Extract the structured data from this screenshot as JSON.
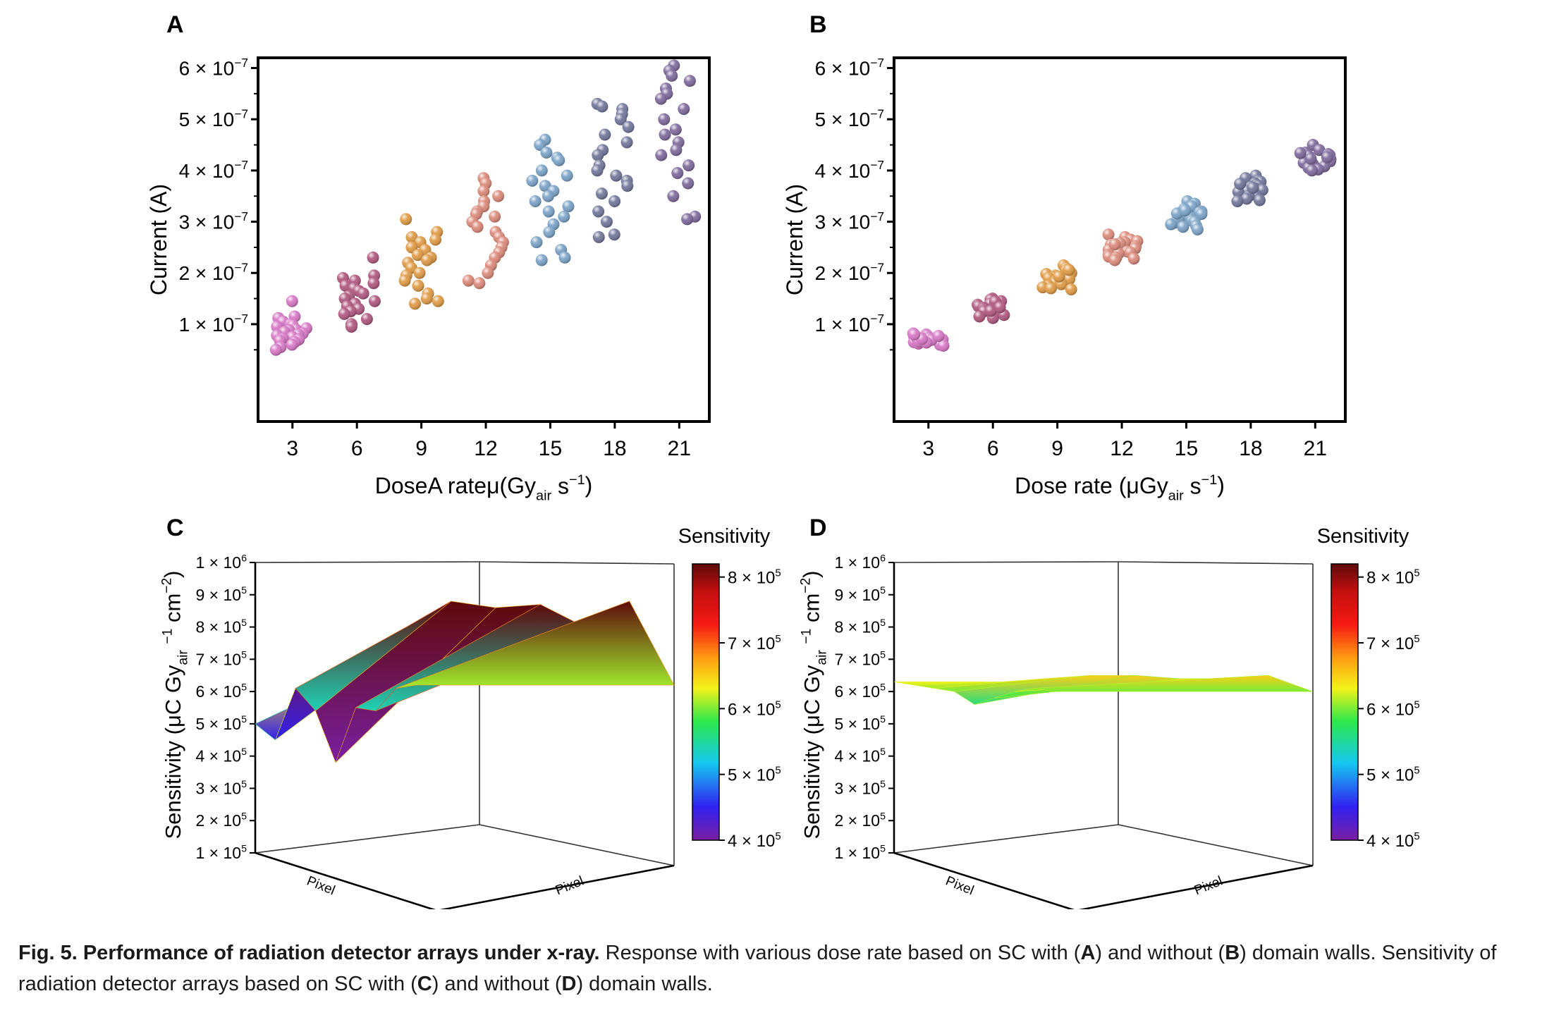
{
  "chart_data": [
    {
      "panel": "A",
      "type": "scatter",
      "xlabel": "DoseA rateμ(Gy",
      "xlabel_sub": "air",
      "xlabel_tail": " s",
      "xlabel_sup": "−1",
      "xlabel_end": ")",
      "ylabel": "Current (A)",
      "x_ticks": [
        "3",
        "6",
        "9",
        "12",
        "15",
        "18",
        "21"
      ],
      "y_ticks": [
        "1 × 10",
        "2 × 10",
        "3 × 10",
        "4 × 10",
        "5 × 10",
        "6 × 10"
      ],
      "y_tick_exp": "−7",
      "xlim": [
        1.4,
        22.4
      ],
      "ylim": [
        -9e-08,
        6.2e-07
      ],
      "series": [
        {
          "x": 3,
          "color": "#d778c6",
          "values": [
            1.45e-07,
            1.15e-07,
            1.12e-07,
            1.05e-07,
            1e-07,
            9.8e-08,
            9.5e-08,
            9.2e-08,
            9e-08,
            8.8e-08,
            8.5e-08,
            8.2e-08,
            8e-08,
            7.8e-08,
            7.5e-08,
            7.2e-08,
            7e-08,
            6.8e-08,
            6.5e-08,
            6e-08,
            5.5e-08,
            5e-08
          ]
        },
        {
          "x": 6,
          "color": "#b0587f",
          "values": [
            2.3e-07,
            1.95e-07,
            1.9e-07,
            1.85e-07,
            1.8e-07,
            1.75e-07,
            1.7e-07,
            1.65e-07,
            1.6e-07,
            1.55e-07,
            1.5e-07,
            1.45e-07,
            1.4e-07,
            1.35e-07,
            1.3e-07,
            1.25e-07,
            1.2e-07,
            1.1e-07,
            1e-07,
            9.5e-08
          ]
        },
        {
          "x": 9,
          "color": "#e09a45",
          "values": [
            3.05e-07,
            2.8e-07,
            2.7e-07,
            2.65e-07,
            2.6e-07,
            2.5e-07,
            2.45e-07,
            2.35e-07,
            2.3e-07,
            2.25e-07,
            2.2e-07,
            2.1e-07,
            2e-07,
            1.95e-07,
            1.85e-07,
            1.75e-07,
            1.6e-07,
            1.5e-07,
            1.45e-07,
            1.4e-07
          ]
        },
        {
          "x": 12,
          "color": "#db8a7a",
          "values": [
            3.85e-07,
            3.75e-07,
            3.6e-07,
            3.5e-07,
            3.4e-07,
            3.3e-07,
            3.2e-07,
            3.15e-07,
            3.1e-07,
            3e-07,
            2.9e-07,
            2.8e-07,
            2.7e-07,
            2.6e-07,
            2.5e-07,
            2.4e-07,
            2.3e-07,
            2.15e-07,
            2e-07,
            1.85e-07,
            1.8e-07
          ]
        },
        {
          "x": 15,
          "color": "#7ba3c8",
          "values": [
            4.6e-07,
            4.5e-07,
            4.35e-07,
            4.25e-07,
            4.2e-07,
            4e-07,
            3.9e-07,
            3.8e-07,
            3.7e-07,
            3.6e-07,
            3.5e-07,
            3.4e-07,
            3.3e-07,
            3.2e-07,
            3.1e-07,
            2.95e-07,
            2.8e-07,
            2.6e-07,
            2.45e-07,
            2.3e-07,
            2.25e-07
          ]
        },
        {
          "x": 18,
          "color": "#72779b",
          "values": [
            5.3e-07,
            5.25e-07,
            5.2e-07,
            5.1e-07,
            5e-07,
            4.85e-07,
            4.7e-07,
            4.55e-07,
            4.4e-07,
            4.3e-07,
            4.1e-07,
            4e-07,
            3.9e-07,
            3.8e-07,
            3.7e-07,
            3.55e-07,
            3.4e-07,
            3.2e-07,
            3e-07,
            2.75e-07,
            2.7e-07
          ]
        },
        {
          "x": 21,
          "color": "#7e6a9c",
          "values": [
            6.05e-07,
            5.95e-07,
            5.85e-07,
            5.75e-07,
            5.6e-07,
            5.5e-07,
            5.4e-07,
            5.2e-07,
            5e-07,
            4.8e-07,
            4.7e-07,
            4.55e-07,
            4.4e-07,
            4.3e-07,
            4.1e-07,
            3.95e-07,
            3.75e-07,
            3.5e-07,
            3.1e-07,
            3.05e-07
          ]
        }
      ]
    },
    {
      "panel": "B",
      "type": "scatter",
      "xlabel": "Dose rate (μGy",
      "xlabel_sub": "air",
      "xlabel_tail": " s",
      "xlabel_sup": "−1",
      "xlabel_end": ")",
      "ylabel": "Current (A)",
      "x_ticks": [
        "3",
        "6",
        "9",
        "12",
        "15",
        "18",
        "21"
      ],
      "y_ticks": [
        "1 × 10",
        "2 × 10",
        "3 × 10",
        "4 × 10",
        "5 × 10",
        "6 × 10"
      ],
      "y_tick_exp": "−7",
      "xlim": [
        1.4,
        22.4
      ],
      "ylim": [
        -9e-08,
        6.2e-07
      ],
      "series": [
        {
          "x": 3,
          "color": "#d778c6",
          "values": [
            8.2e-08,
            8e-08,
            7.8e-08,
            7.6e-08,
            7.4e-08,
            7.2e-08,
            7e-08,
            6.8e-08,
            6.5e-08,
            6.2e-08,
            6e-08,
            5.8e-08,
            7.5e-08,
            7.3e-08,
            6.9e-08,
            6.6e-08,
            6.4e-08,
            7.1e-08,
            7.7e-08,
            8e-08
          ]
        },
        {
          "x": 6,
          "color": "#b0587f",
          "values": [
            1.5e-07,
            1.48e-07,
            1.45e-07,
            1.42e-07,
            1.4e-07,
            1.38e-07,
            1.35e-07,
            1.32e-07,
            1.3e-07,
            1.28e-07,
            1.25e-07,
            1.22e-07,
            1.2e-07,
            1.18e-07,
            1.15e-07,
            1.12e-07,
            1.36e-07,
            1.44e-07,
            1.26e-07,
            1.33e-07
          ]
        },
        {
          "x": 9,
          "color": "#e09a45",
          "values": [
            2.15e-07,
            2.1e-07,
            2.05e-07,
            2.02e-07,
            2e-07,
            1.98e-07,
            1.95e-07,
            1.92e-07,
            1.9e-07,
            1.88e-07,
            1.85e-07,
            1.82e-07,
            1.8e-07,
            1.78e-07,
            1.75e-07,
            1.72e-07,
            1.7e-07,
            1.68e-07,
            1.93e-07,
            2.06e-07
          ]
        },
        {
          "x": 12,
          "color": "#db8a7a",
          "values": [
            2.75e-07,
            2.7e-07,
            2.65e-07,
            2.62e-07,
            2.6e-07,
            2.58e-07,
            2.55e-07,
            2.52e-07,
            2.5e-07,
            2.48e-07,
            2.45e-07,
            2.42e-07,
            2.4e-07,
            2.38e-07,
            2.35e-07,
            2.32e-07,
            2.3e-07,
            2.28e-07,
            2.25e-07,
            2.56e-07
          ]
        },
        {
          "x": 15,
          "color": "#7ba3c8",
          "values": [
            3.4e-07,
            3.35e-07,
            3.3e-07,
            3.25e-07,
            3.2e-07,
            3.18e-07,
            3.15e-07,
            3.12e-07,
            3.1e-07,
            3.08e-07,
            3.05e-07,
            3.02e-07,
            3e-07,
            2.98e-07,
            2.95e-07,
            2.92e-07,
            2.9e-07,
            2.85e-07,
            3.16e-07,
            3.22e-07
          ]
        },
        {
          "x": 18,
          "color": "#72779b",
          "values": [
            3.9e-07,
            3.85e-07,
            3.8e-07,
            3.78e-07,
            3.75e-07,
            3.72e-07,
            3.7e-07,
            3.68e-07,
            3.65e-07,
            3.62e-07,
            3.6e-07,
            3.58e-07,
            3.55e-07,
            3.52e-07,
            3.5e-07,
            3.45e-07,
            3.42e-07,
            3.4e-07,
            3.66e-07,
            3.74e-07
          ]
        },
        {
          "x": 21,
          "color": "#7e6a9c",
          "values": [
            4.5e-07,
            4.4e-07,
            4.35e-07,
            4.32e-07,
            4.3e-07,
            4.28e-07,
            4.25e-07,
            4.22e-07,
            4.2e-07,
            4.18e-07,
            4.15e-07,
            4.12e-07,
            4.1e-07,
            4.08e-07,
            4.05e-07,
            4.02e-07,
            4e-07,
            4.26e-07,
            4.34e-07,
            4.23e-07
          ]
        }
      ]
    },
    {
      "panel": "C",
      "type": "surface",
      "zlabel": "Sensitivity (μC Gy",
      "zlabel_sub": "air",
      "zlabel_sup1": "−1",
      "zlabel_mid": " cm",
      "zlabel_sup2": "−2",
      "zlabel_end": ")",
      "xlabel": "Pixel",
      "ylabel": "Pixel",
      "z_ticks": [
        "1 × 10",
        "2 × 10",
        "3 × 10",
        "4 × 10",
        "5 × 10",
        "6 × 10",
        "7 × 10",
        "8 × 10",
        "9 × 10",
        "1 × 10"
      ],
      "z_tick_exps": [
        "5",
        "5",
        "5",
        "5",
        "5",
        "5",
        "5",
        "5",
        "5",
        "6"
      ],
      "colorbar_title": "Sensitivity",
      "colorbar_ticks": [
        "4 × 10",
        "5 × 10",
        "6 × 10",
        "7 × 10",
        "8 × 10"
      ],
      "colorbar_tick_exp": "5",
      "zlim": [
        100000,
        1000000
      ],
      "colorbar_range": [
        400000,
        820000
      ],
      "surface_rows": [
        [
          500000,
          450000,
          610000,
          540000,
          380000,
          550000,
          540000,
          610000,
          620000
        ],
        [
          590000,
          650000,
          800000,
          880000,
          860000,
          870000,
          800000,
          880000,
          620000
        ]
      ]
    },
    {
      "panel": "D",
      "type": "surface",
      "zlabel": "Sensitivity (μC Gy",
      "zlabel_sub": "air",
      "zlabel_sup1": "−1",
      "zlabel_mid": " cm",
      "zlabel_sup2": "−2",
      "zlabel_end": ")",
      "xlabel": "Pixel",
      "ylabel": "Pixel",
      "z_ticks": [
        "1 × 10",
        "2 × 10",
        "3 × 10",
        "4 × 10",
        "5 × 10",
        "6 × 10",
        "7 × 10",
        "8 × 10",
        "9 × 10",
        "1 × 10"
      ],
      "z_tick_exps": [
        "5",
        "5",
        "5",
        "5",
        "5",
        "5",
        "5",
        "5",
        "5",
        "6"
      ],
      "colorbar_title": "Sensitivity",
      "colorbar_ticks": [
        "4 × 10",
        "5 × 10",
        "6 × 10",
        "7 × 10",
        "8 × 10"
      ],
      "colorbar_tick_exp": "5",
      "zlim": [
        100000,
        1000000
      ],
      "colorbar_range": [
        400000,
        820000
      ],
      "surface_rows": [
        [
          630000,
          620000,
          610000,
          600000,
          560000,
          580000,
          600000,
          610000,
          600000
        ],
        [
          630000,
          630000,
          640000,
          650000,
          650000,
          640000,
          640000,
          650000,
          600000
        ]
      ]
    }
  ],
  "panel_letters": [
    "A",
    "B",
    "C",
    "D"
  ],
  "caption": {
    "title": "Fig. 5. Performance of radiation detector arrays under x-ray.",
    "t1": " Response with various dose rate based on SC with (",
    "A": "A",
    "t2": ") and without (",
    "B": "B",
    "t3": ") domain walls. Sensitivity of radiation detector arrays based on SC with (",
    "C": "C",
    "t4": ") and without (",
    "D": "D",
    "t5": ") domain walls."
  }
}
